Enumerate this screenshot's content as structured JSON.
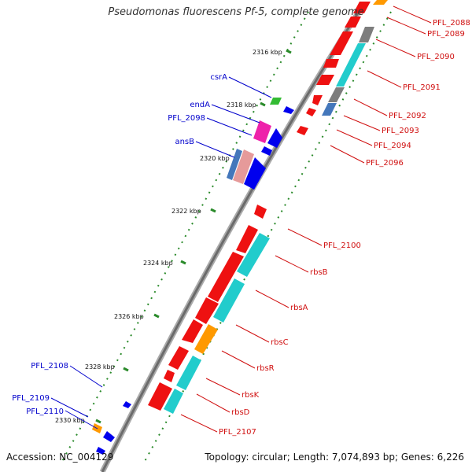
{
  "title": "Pseudomonas fluorescens Pf-5, complete genome",
  "accession_label": "Accession:",
  "accession": "NC_004129",
  "topology_line": "Topology: circular; Length: 7,074,893 bp; Genes: 6,226",
  "colors": {
    "backbone": "#777777",
    "tick_mark": "#2a8a2a",
    "label_left": "#0000cc",
    "label_right": "#d01010",
    "red": "#ee1111",
    "cyan": "#22cccc",
    "gray": "#7d7d7d",
    "orange": "#ff9900",
    "blue": "#0000ee",
    "steel": "#4477bb",
    "green": "#33bb33",
    "pink": "#ee22aa"
  },
  "axis_ticks": [
    "2316 kbp",
    "2318 kbp",
    "2320 kbp",
    "2322 kbp",
    "2324 kbp",
    "2326 kbp",
    "2328 kbp",
    "2330 kbp"
  ],
  "left_labels": [
    "csrA",
    "endA",
    "PFL_2098",
    "ansB",
    "PFL_2108",
    "PFL_2109",
    "PFL_2110"
  ],
  "right_labels": [
    "PFL_2088",
    "PFL_2089",
    "PFL_2090",
    "PFL_2091",
    "PFL_2092",
    "PFL_2093",
    "PFL_2094",
    "PFL_2096",
    "PFL_2100",
    "rbsB",
    "rbsA",
    "rbsC",
    "rbsR",
    "rbsK",
    "rbsD",
    "PFL_2107"
  ]
}
